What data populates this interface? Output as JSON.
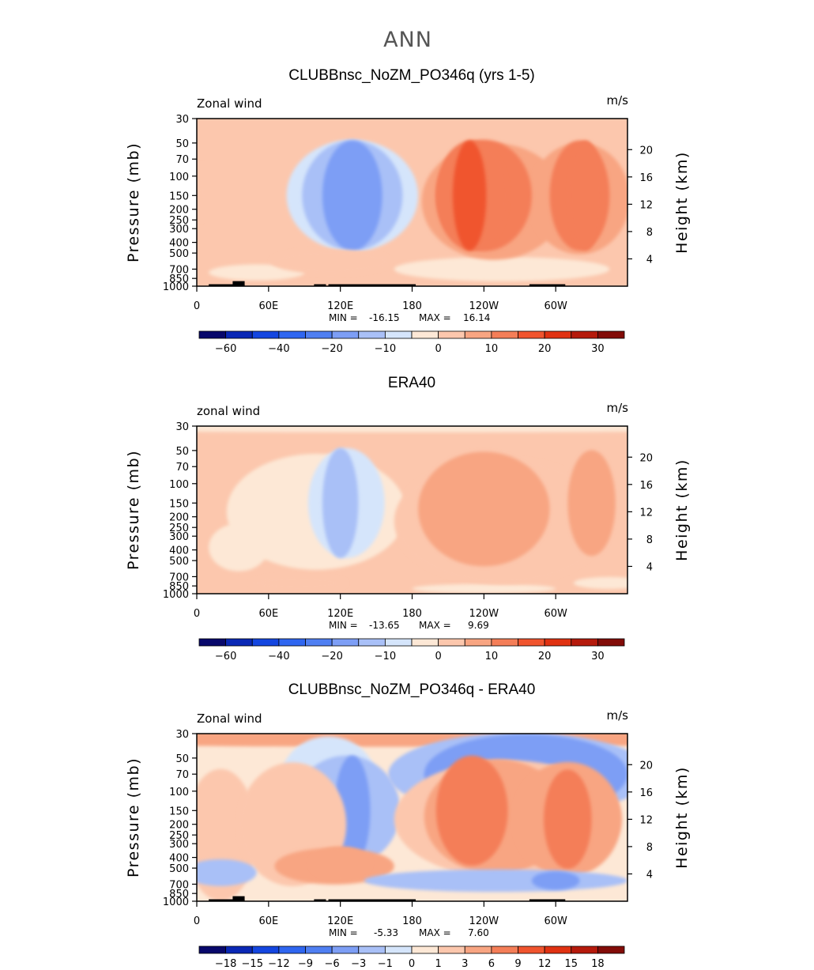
{
  "figure_title": "ANN",
  "colors": {
    "scale": [
      "#08086b",
      "#0a28b5",
      "#1446e0",
      "#2f66f0",
      "#4f7ff2",
      "#7d9ef5",
      "#a9c0f7",
      "#d5e5fb",
      "#fde8d6",
      "#fcc7ad",
      "#f8a582",
      "#f47e58",
      "#f0542e",
      "#e03212",
      "#b51a0c",
      "#820c08"
    ],
    "axis": "#000000",
    "land": "#000000"
  },
  "panels": [
    {
      "id": "model",
      "title": "CLUBBnsc_NoZM_PO346q (yrs 1-5)",
      "variable": "Zonal wind",
      "units": "m/s",
      "stats": {
        "min_label": "MIN =",
        "min": "-16.15",
        "max_label": "MAX =",
        "max": "16.14"
      }
    },
    {
      "id": "obs",
      "title": "ERA40",
      "variable": "zonal wind",
      "units": "m/s",
      "stats": {
        "min_label": "MIN =",
        "min": "-13.65",
        "max_label": "MAX =",
        "max": "9.69"
      }
    },
    {
      "id": "diff",
      "title": "CLUBBnsc_NoZM_PO346q - ERA40",
      "variable": "Zonal wind",
      "units": "m/s",
      "stats": {
        "min_label": "MIN =",
        "min": "-5.33",
        "max_label": "MAX =",
        "max": "7.60"
      }
    }
  ],
  "chart_data": [
    {
      "type": "heatmap",
      "title": "CLUBBnsc_NoZM_PO346q (yrs 1-5)",
      "variable": "Zonal wind",
      "units": "m/s",
      "ylabel": "Pressure (mb)",
      "y2label": "Height (km)",
      "x_ticks": [
        "0",
        "60E",
        "120E",
        "180",
        "120W",
        "60W"
      ],
      "x_tick_lon": [
        0,
        60,
        120,
        180,
        240,
        300
      ],
      "xlim": [
        0,
        360
      ],
      "p_ticks": [
        "30",
        "50",
        "70",
        "100",
        "150",
        "200",
        "250",
        "300",
        "400",
        "500",
        "700",
        "850",
        "1000"
      ],
      "p_values": [
        30,
        50,
        70,
        100,
        150,
        200,
        250,
        300,
        400,
        500,
        700,
        850,
        1000
      ],
      "ylim_mb": [
        1000,
        30
      ],
      "height_ticks": [
        "4",
        "8",
        "12",
        "16",
        "20"
      ],
      "height_values": [
        4,
        8,
        12,
        16,
        20
      ],
      "min": -16.15,
      "max": 16.14,
      "colorbar": {
        "levels": [
          -70,
          -60,
          -50,
          -40,
          -30,
          -20,
          -15,
          -10,
          -5,
          0,
          5,
          10,
          15,
          20,
          25,
          30
        ],
        "labels": [
          "-60",
          "-40",
          "-20",
          "-10",
          "0",
          "10",
          "20",
          "30"
        ],
        "label_after_box": [
          1,
          3,
          5,
          7,
          9,
          11,
          13,
          15
        ]
      },
      "fields": [
        {
          "lon": 0,
          "p": 1000,
          "lon_w": 400,
          "p_w": 0,
          "value": 2
        },
        {
          "lon": 50,
          "p": 750,
          "lon_w": 40,
          "p_w": 250,
          "value": -3
        },
        {
          "lon": 4,
          "p": 140,
          "lon_w": 2,
          "p_w": 150,
          "value": 3
        },
        {
          "lon": 130,
          "p": 150,
          "lon_w": 55,
          "p_w": 320,
          "value": -6
        },
        {
          "lon": 130,
          "p": 150,
          "lon_w": 42,
          "p_w": 300,
          "value": -11
        },
        {
          "lon": 130,
          "p": 150,
          "lon_w": 25,
          "p_w": 300,
          "value": -16
        },
        {
          "lon": 112,
          "p": 600,
          "lon_w": 50,
          "p_w": 300,
          "value": 4
        },
        {
          "lon": 255,
          "p": 700,
          "lon_w": 90,
          "p_w": 350,
          "value": -2
        },
        {
          "lon": 248,
          "p": 170,
          "lon_w": 60,
          "p_w": 350,
          "value": 6
        },
        {
          "lon": 320,
          "p": 160,
          "lon_w": 42,
          "p_w": 300,
          "value": 7
        },
        {
          "lon": 240,
          "p": 150,
          "lon_w": 40,
          "p_w": 320,
          "value": 11
        },
        {
          "lon": 320,
          "p": 150,
          "lon_w": 25,
          "p_w": 300,
          "value": 11
        },
        {
          "lon": 230,
          "p": 150,
          "lon_w": 30,
          "p_w": 300,
          "value": 14
        },
        {
          "lon": 325,
          "p": 150,
          "lon_w": 14,
          "p_w": 300,
          "value": 14
        },
        {
          "lon": 228,
          "p": 150,
          "lon_w": 14,
          "p_w": 300,
          "value": 16
        }
      ],
      "land": [
        {
          "lon_start": 10,
          "lon_end": 40,
          "p_top": 960
        },
        {
          "lon_start": 30,
          "lon_end": 40,
          "p_top": 900
        },
        {
          "lon_start": 98,
          "lon_end": 108,
          "p_top": 960
        },
        {
          "lon_start": 110,
          "lon_end": 183,
          "p_top": 960
        },
        {
          "lon_start": 278,
          "lon_end": 308,
          "p_top": 960
        }
      ]
    },
    {
      "type": "heatmap",
      "title": "ERA40",
      "variable": "zonal wind",
      "units": "m/s",
      "ylabel": "Pressure (mb)",
      "y2label": "Height (km)",
      "x_ticks": [
        "0",
        "60E",
        "120E",
        "180",
        "120W",
        "60W"
      ],
      "x_tick_lon": [
        0,
        60,
        120,
        180,
        240,
        300
      ],
      "xlim": [
        0,
        360
      ],
      "p_ticks": [
        "30",
        "50",
        "70",
        "100",
        "150",
        "200",
        "250",
        "300",
        "400",
        "500",
        "700",
        "850",
        "1000"
      ],
      "p_values": [
        30,
        50,
        70,
        100,
        150,
        200,
        250,
        300,
        400,
        500,
        700,
        850,
        1000
      ],
      "ylim_mb": [
        1000,
        30
      ],
      "height_ticks": [
        "4",
        "8",
        "12",
        "16",
        "20"
      ],
      "height_values": [
        4,
        8,
        12,
        16,
        20
      ],
      "min": -13.65,
      "max": 9.69,
      "colorbar": {
        "levels": [
          -70,
          -60,
          -50,
          -40,
          -30,
          -20,
          -15,
          -10,
          -5,
          0,
          5,
          10,
          15,
          20,
          25,
          30
        ],
        "labels": [
          "-60",
          "-40",
          "-20",
          "-10",
          "0",
          "10",
          "20",
          "30"
        ],
        "label_after_box": [
          1,
          3,
          5,
          7,
          9,
          11,
          13,
          15
        ]
      },
      "fields": [
        {
          "lon": 0,
          "p": 1000,
          "lon_w": 400,
          "p_w": 0,
          "value": 2
        },
        {
          "lon": 180,
          "p": 30,
          "lon_w": 400,
          "p_w": 18,
          "value": -3
        },
        {
          "lon": 100,
          "p": 180,
          "lon_w": 75,
          "p_w": 320,
          "value": -4
        },
        {
          "lon": 35,
          "p": 380,
          "lon_w": 25,
          "p_w": 350,
          "value": -3
        },
        {
          "lon": 125,
          "p": 150,
          "lon_w": 32,
          "p_w": 300,
          "value": -8
        },
        {
          "lon": 120,
          "p": 150,
          "lon_w": 15,
          "p_w": 300,
          "value": -13
        },
        {
          "lon": 85,
          "p": 800,
          "lon_w": 40,
          "p_w": 250,
          "value": 4
        },
        {
          "lon": 240,
          "p": 900,
          "lon_w": 60,
          "p_w": 150,
          "value": -3
        },
        {
          "lon": 345,
          "p": 800,
          "lon_w": 30,
          "p_w": 200,
          "value": -3
        },
        {
          "lon": 255,
          "p": 220,
          "lon_w": 90,
          "p_w": 400,
          "value": 4
        },
        {
          "lon": 240,
          "p": 170,
          "lon_w": 55,
          "p_w": 320,
          "value": 8
        },
        {
          "lon": 330,
          "p": 150,
          "lon_w": 20,
          "p_w": 250,
          "value": 8
        }
      ],
      "land": []
    },
    {
      "type": "heatmap",
      "title": "CLUBBnsc_NoZM_PO346q - ERA40",
      "variable": "Zonal wind",
      "units": "m/s",
      "ylabel": "Pressure (mb)",
      "y2label": "Height (km)",
      "x_ticks": [
        "0",
        "60E",
        "120E",
        "180",
        "120W",
        "60W"
      ],
      "x_tick_lon": [
        0,
        60,
        120,
        180,
        240,
        300
      ],
      "xlim": [
        0,
        360
      ],
      "p_ticks": [
        "30",
        "50",
        "70",
        "100",
        "150",
        "200",
        "250",
        "300",
        "400",
        "500",
        "700",
        "850",
        "1000"
      ],
      "p_values": [
        30,
        50,
        70,
        100,
        150,
        200,
        250,
        300,
        400,
        500,
        700,
        850,
        1000
      ],
      "ylim_mb": [
        1000,
        30
      ],
      "height_ticks": [
        "4",
        "8",
        "12",
        "16",
        "20"
      ],
      "height_values": [
        4,
        8,
        12,
        16,
        20
      ],
      "min": -5.33,
      "max": 7.6,
      "colorbar": {
        "levels": [
          -21,
          -18,
          -15,
          -12,
          -9,
          -6,
          -3,
          -1,
          0,
          1,
          3,
          6,
          9,
          12,
          15,
          18
        ],
        "labels": [
          "-18",
          "-15",
          "-12",
          "-9",
          "-6",
          "-3",
          "-1",
          "0",
          "1",
          "3",
          "6",
          "9",
          "12",
          "15",
          "18"
        ],
        "label_after_box": [
          1,
          2,
          3,
          4,
          5,
          6,
          7,
          8,
          9,
          10,
          11,
          12,
          13,
          14,
          15
        ]
      },
      "fields": [
        {
          "lon": 0,
          "p": 1000,
          "lon_w": 400,
          "p_w": 0,
          "value": 0.5
        },
        {
          "lon": 180,
          "p": 33,
          "lon_w": 400,
          "p_w": 20,
          "value": 4
        },
        {
          "lon": 270,
          "p": 70,
          "lon_w": 110,
          "p_w": 200,
          "value": -2
        },
        {
          "lon": 275,
          "p": 70,
          "lon_w": 85,
          "p_w": 180,
          "value": -4
        },
        {
          "lon": 110,
          "p": 80,
          "lon_w": 40,
          "p_w": 220,
          "value": -0.5
        },
        {
          "lon": 125,
          "p": 150,
          "lon_w": 45,
          "p_w": 300,
          "value": -2
        },
        {
          "lon": 130,
          "p": 150,
          "lon_w": 15,
          "p_w": 300,
          "value": -4
        },
        {
          "lon": 20,
          "p": 250,
          "lon_w": 30,
          "p_w": 450,
          "value": 2
        },
        {
          "lon": 80,
          "p": 200,
          "lon_w": 45,
          "p_w": 400,
          "value": 2
        },
        {
          "lon": 115,
          "p": 480,
          "lon_w": 50,
          "p_w": 350,
          "value": 3
        },
        {
          "lon": 120,
          "p": 450,
          "lon_w": 25,
          "p_w": 300,
          "value": 5
        },
        {
          "lon": 260,
          "p": 180,
          "lon_w": 95,
          "p_w": 350,
          "value": 2
        },
        {
          "lon": 250,
          "p": 170,
          "lon_w": 60,
          "p_w": 320,
          "value": 5
        },
        {
          "lon": 310,
          "p": 180,
          "lon_w": 45,
          "p_w": 300,
          "value": 5
        },
        {
          "lon": 230,
          "p": 150,
          "lon_w": 30,
          "p_w": 300,
          "value": 7
        },
        {
          "lon": 310,
          "p": 180,
          "lon_w": 20,
          "p_w": 280,
          "value": 7
        },
        {
          "lon": 250,
          "p": 650,
          "lon_w": 110,
          "p_w": 300,
          "value": -2
        },
        {
          "lon": 300,
          "p": 650,
          "lon_w": 20,
          "p_w": 250,
          "value": -4
        },
        {
          "lon": 20,
          "p": 550,
          "lon_w": 30,
          "p_w": 300,
          "value": -2
        }
      ],
      "land": [
        {
          "lon_start": 10,
          "lon_end": 40,
          "p_top": 960
        },
        {
          "lon_start": 30,
          "lon_end": 40,
          "p_top": 900
        },
        {
          "lon_start": 98,
          "lon_end": 108,
          "p_top": 960
        },
        {
          "lon_start": 110,
          "lon_end": 183,
          "p_top": 960
        },
        {
          "lon_start": 278,
          "lon_end": 308,
          "p_top": 960
        }
      ]
    }
  ]
}
